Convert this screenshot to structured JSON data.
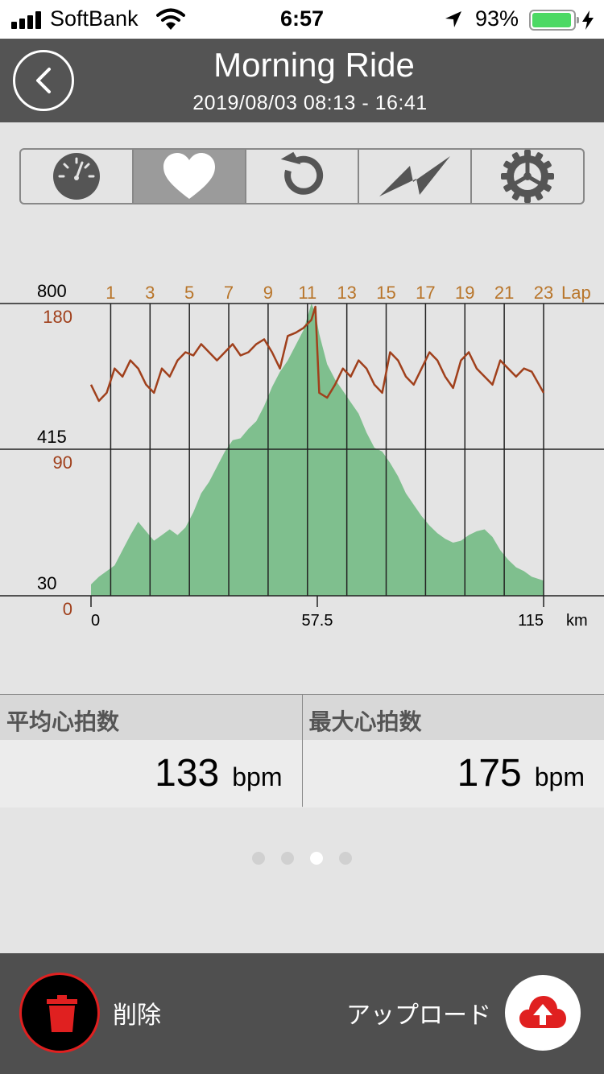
{
  "status_bar": {
    "carrier": "SoftBank",
    "time": "6:57",
    "battery_percent": "93%",
    "battery_level": 0.93,
    "icons": [
      "signal-icon",
      "wifi-icon",
      "location-arrow-icon",
      "battery-icon",
      "charging-bolt-icon"
    ]
  },
  "header": {
    "title": "Morning Ride",
    "subtitle": "2019/08/03 08:13 - 16:41"
  },
  "tabs": [
    {
      "icon": "speedometer-icon",
      "active": false
    },
    {
      "icon": "heart-icon",
      "active": true
    },
    {
      "icon": "cadence-icon",
      "active": false
    },
    {
      "icon": "power-icon",
      "active": false
    },
    {
      "icon": "gear-icon",
      "active": false
    }
  ],
  "chart_data": {
    "type": "line",
    "left_axis_elevation": {
      "ticks": [
        "800",
        "415",
        "30"
      ],
      "range": [
        30,
        800
      ],
      "color": "#000000"
    },
    "left_axis_heart_rate": {
      "ticks": [
        "180",
        "90",
        "0"
      ],
      "range": [
        0,
        180
      ],
      "color": "#a0401c"
    },
    "x_ticks": [
      "0",
      "57.5",
      "115"
    ],
    "x_unit": "km",
    "x_range": [
      0,
      115
    ],
    "lap_label": "Lap",
    "lap_ticks": [
      "1",
      "3",
      "5",
      "7",
      "9",
      "11",
      "13",
      "15",
      "17",
      "19",
      "21",
      "23"
    ],
    "lap_distances_km": [
      5,
      15,
      25,
      35,
      45,
      55,
      65,
      75,
      85,
      95,
      105,
      115
    ],
    "colors": {
      "heart_rate": "#a0401c",
      "elevation": "#7fbf8e",
      "lap_labels": "#b8752a"
    },
    "series": [
      {
        "kind": "area",
        "x": [
          0,
          2,
          4,
          6,
          8,
          10,
          12,
          14,
          16,
          18,
          20,
          22,
          24,
          26,
          28,
          30,
          32,
          34,
          36,
          38,
          40,
          42,
          44,
          46,
          48,
          50,
          52,
          54,
          56,
          57,
          58,
          60,
          62,
          64,
          66,
          68,
          70,
          72,
          74,
          76,
          78,
          80,
          82,
          84,
          86,
          88,
          90,
          92,
          94,
          96,
          98,
          100,
          102,
          104,
          106,
          108,
          110,
          112,
          115
        ],
        "values": [
          60,
          80,
          95,
          110,
          150,
          190,
          225,
          200,
          175,
          190,
          205,
          190,
          210,
          250,
          300,
          330,
          370,
          410,
          440,
          445,
          470,
          490,
          530,
          580,
          620,
          650,
          690,
          730,
          800,
          775,
          720,
          640,
          600,
          570,
          540,
          510,
          460,
          420,
          410,
          380,
          345,
          300,
          270,
          240,
          215,
          195,
          180,
          170,
          175,
          190,
          200,
          205,
          185,
          150,
          125,
          105,
          95,
          80,
          70
        ]
      },
      {
        "kind": "line",
        "x": [
          0,
          2,
          4,
          6,
          8,
          10,
          12,
          14,
          16,
          18,
          20,
          22,
          24,
          26,
          28,
          30,
          32,
          34,
          36,
          38,
          40,
          42,
          44,
          46,
          48,
          50,
          52,
          54,
          56,
          57,
          58,
          60,
          62,
          64,
          66,
          68,
          70,
          72,
          74,
          76,
          78,
          80,
          82,
          84,
          86,
          88,
          90,
          92,
          94,
          96,
          98,
          100,
          102,
          104,
          106,
          108,
          110,
          112,
          115
        ],
        "values": [
          130,
          120,
          125,
          140,
          135,
          145,
          140,
          130,
          125,
          140,
          135,
          145,
          150,
          148,
          155,
          150,
          145,
          150,
          155,
          148,
          150,
          155,
          158,
          150,
          140,
          160,
          162,
          165,
          170,
          178,
          125,
          122,
          130,
          140,
          135,
          145,
          140,
          130,
          125,
          150,
          145,
          135,
          130,
          140,
          150,
          145,
          135,
          128,
          145,
          150,
          140,
          135,
          130,
          145,
          140,
          135,
          140,
          138,
          125
        ]
      }
    ]
  },
  "stats": [
    {
      "label": "平均心拍数",
      "value": "133",
      "unit": "bpm"
    },
    {
      "label": "最大心拍数",
      "value": "175",
      "unit": "bpm"
    }
  ],
  "pager": {
    "count": 4,
    "active": 2
  },
  "bottom_bar": {
    "delete_label": "削除",
    "upload_label": "アップロード"
  }
}
